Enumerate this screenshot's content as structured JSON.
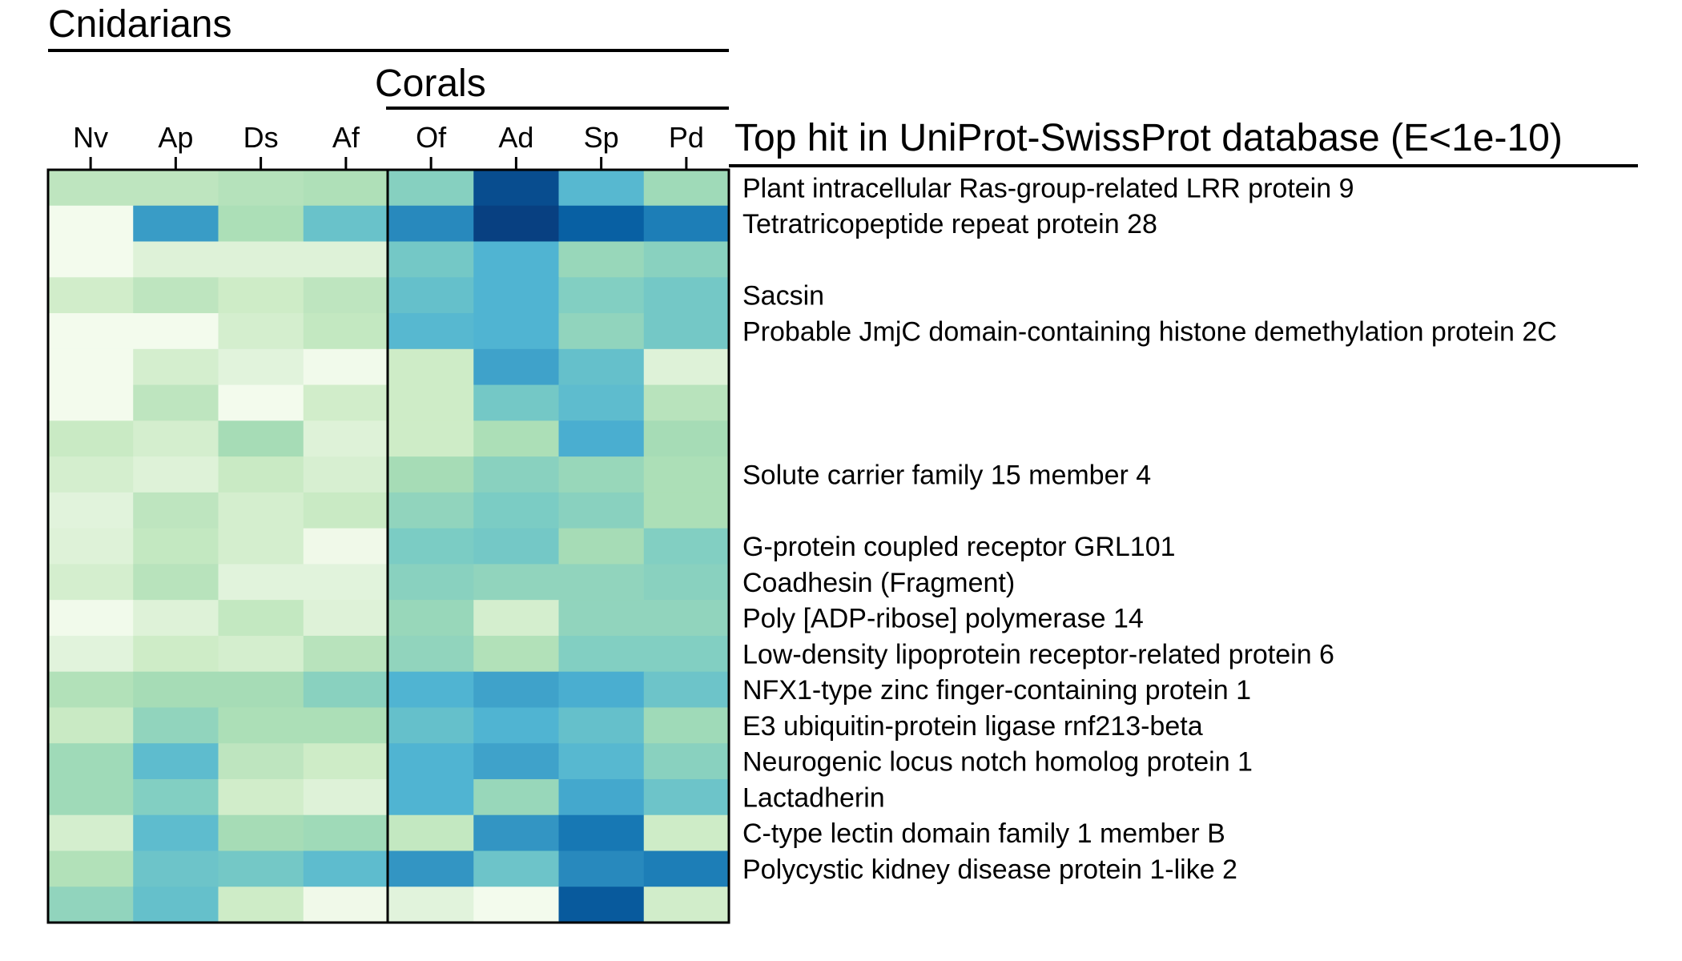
{
  "chart_data": {
    "type": "heatmap",
    "group_labels": {
      "outer": "Cnidarians",
      "inner": "Corals"
    },
    "columns": [
      "Nv",
      "Ap",
      "Ds",
      "Af",
      "Of",
      "Ad",
      "Sp",
      "Pd"
    ],
    "header": "Top hit in UniProt-SwissProt database (E<1e-10)",
    "color_scale": [
      "#f7fcf0",
      "#e0f3db",
      "#ccebc5",
      "#a8ddb5",
      "#7bccc4",
      "#4eb3d3",
      "#2b8cbe",
      "#0868ac",
      "#084081"
    ],
    "row_labels": [
      "Plant intracellular Ras-group-related LRR protein 9",
      "Tetratricopeptide repeat protein 28",
      "",
      "Sacsin",
      "Probable JmjC domain-containing histone demethylation protein 2C",
      "",
      "",
      "",
      "Solute carrier family 15 member 4",
      "",
      "G-protein coupled receptor GRL101",
      "Coadhesin (Fragment)",
      "Poly [ADP-ribose] polymerase 14",
      "Low-density lipoprotein receptor-related protein 6",
      "NFX1-type zinc finger-containing protein 1",
      "E3 ubiquitin-protein ligase rnf213-beta",
      "Neurogenic locus notch homolog protein 1",
      "Lactadherin",
      "C-type lectin domain family 1 member B",
      "Polycystic kidney disease protein 1-like 2",
      ""
    ],
    "values": [
      [
        0.3,
        0.3,
        0.33,
        0.35,
        0.47,
        0.96,
        0.6,
        0.4
      ],
      [
        0.02,
        0.7,
        0.36,
        0.55,
        0.76,
        1.0,
        0.9,
        0.8
      ],
      [
        0.02,
        0.14,
        0.14,
        0.14,
        0.52,
        0.62,
        0.42,
        0.46
      ],
      [
        0.22,
        0.3,
        0.24,
        0.3,
        0.56,
        0.62,
        0.48,
        0.52
      ],
      [
        0.02,
        0.02,
        0.2,
        0.28,
        0.6,
        0.62,
        0.44,
        0.52
      ],
      [
        0.02,
        0.2,
        0.12,
        0.03,
        0.24,
        0.68,
        0.56,
        0.14
      ],
      [
        0.02,
        0.3,
        0.02,
        0.22,
        0.24,
        0.52,
        0.58,
        0.32
      ],
      [
        0.26,
        0.2,
        0.38,
        0.14,
        0.24,
        0.36,
        0.64,
        0.38
      ],
      [
        0.2,
        0.14,
        0.26,
        0.18,
        0.38,
        0.46,
        0.42,
        0.36
      ],
      [
        0.12,
        0.3,
        0.2,
        0.26,
        0.44,
        0.5,
        0.46,
        0.36
      ],
      [
        0.14,
        0.28,
        0.2,
        0.04,
        0.5,
        0.52,
        0.38,
        0.48
      ],
      [
        0.2,
        0.32,
        0.12,
        0.12,
        0.46,
        0.44,
        0.44,
        0.46
      ],
      [
        0.03,
        0.14,
        0.28,
        0.14,
        0.42,
        0.2,
        0.44,
        0.44
      ],
      [
        0.12,
        0.24,
        0.2,
        0.32,
        0.44,
        0.34,
        0.48,
        0.48
      ],
      [
        0.34,
        0.38,
        0.38,
        0.46,
        0.62,
        0.68,
        0.64,
        0.54
      ],
      [
        0.26,
        0.44,
        0.36,
        0.36,
        0.56,
        0.62,
        0.56,
        0.4
      ],
      [
        0.4,
        0.58,
        0.3,
        0.24,
        0.62,
        0.68,
        0.6,
        0.46
      ],
      [
        0.4,
        0.48,
        0.22,
        0.14,
        0.62,
        0.42,
        0.66,
        0.54
      ],
      [
        0.2,
        0.58,
        0.38,
        0.4,
        0.28,
        0.72,
        0.82,
        0.24
      ],
      [
        0.34,
        0.54,
        0.52,
        0.58,
        0.72,
        0.54,
        0.76,
        0.8
      ],
      [
        0.44,
        0.56,
        0.24,
        0.04,
        0.12,
        0.02,
        0.92,
        0.22
      ]
    ]
  }
}
